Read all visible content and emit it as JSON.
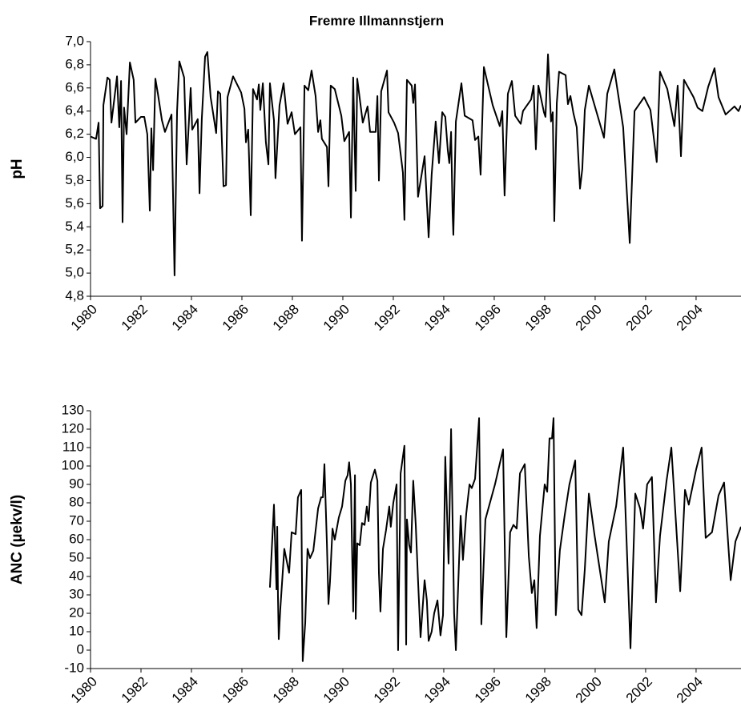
{
  "chart_data": [
    {
      "type": "line",
      "title": "Fremre Illmannstjern",
      "ylabel": "pH",
      "color": "#000000",
      "xlim": [
        1980,
        2005.78
      ],
      "xticks": [
        1980,
        1982,
        1984,
        1986,
        1988,
        1990,
        1992,
        1994,
        1996,
        1998,
        2000,
        2002,
        2004
      ],
      "ylim": [
        4.8,
        7.0
      ],
      "yticks": [
        {
          "value": 4.8,
          "label": "4,8"
        },
        {
          "value": 5.0,
          "label": "5,0"
        },
        {
          "value": 5.2,
          "label": "5,2"
        },
        {
          "value": 5.4,
          "label": "5,4"
        },
        {
          "value": 5.6,
          "label": "5,6"
        },
        {
          "value": 5.8,
          "label": "5,8"
        },
        {
          "value": 6.0,
          "label": "6,0"
        },
        {
          "value": 6.2,
          "label": "6,2"
        },
        {
          "value": 6.4,
          "label": "6,4"
        },
        {
          "value": 6.6,
          "label": "6,6"
        },
        {
          "value": 6.8,
          "label": "6,8"
        },
        {
          "value": 7.0,
          "label": "7,0"
        }
      ],
      "x": [
        1980.0,
        1980.22,
        1980.32,
        1980.38,
        1980.48,
        1980.51,
        1980.67,
        1980.76,
        1980.83,
        1981.05,
        1981.14,
        1981.21,
        1981.27,
        1981.33,
        1981.43,
        1981.56,
        1981.71,
        1981.78,
        1982.0,
        1982.13,
        1982.25,
        1982.35,
        1982.41,
        1982.48,
        1982.57,
        1982.67,
        1982.83,
        1982.95,
        1983.21,
        1983.33,
        1983.43,
        1983.52,
        1983.71,
        1983.81,
        1983.97,
        1984.03,
        1984.25,
        1984.32,
        1984.41,
        1984.54,
        1984.63,
        1984.76,
        1984.98,
        1985.05,
        1985.14,
        1985.27,
        1985.37,
        1985.43,
        1985.65,
        1985.97,
        1986.1,
        1986.16,
        1986.25,
        1986.35,
        1986.44,
        1986.6,
        1986.67,
        1986.73,
        1986.83,
        1986.95,
        1987.05,
        1987.11,
        1987.27,
        1987.33,
        1987.49,
        1987.65,
        1987.81,
        1987.97,
        1988.1,
        1988.32,
        1988.38,
        1988.48,
        1988.63,
        1988.76,
        1988.92,
        1989.02,
        1989.11,
        1989.17,
        1989.37,
        1989.43,
        1989.52,
        1989.68,
        1989.94,
        1990.06,
        1990.25,
        1990.32,
        1990.41,
        1990.51,
        1990.57,
        1990.79,
        1990.98,
        1991.08,
        1991.3,
        1991.37,
        1991.43,
        1991.52,
        1991.75,
        1991.81,
        1992.03,
        1992.19,
        1992.38,
        1992.44,
        1992.54,
        1992.73,
        1992.79,
        1992.86,
        1992.98,
        1993.24,
        1993.4,
        1993.52,
        1993.68,
        1993.81,
        1993.94,
        1994.06,
        1994.16,
        1994.22,
        1994.29,
        1994.35,
        1994.38,
        1994.48,
        1994.7,
        1994.83,
        1995.14,
        1995.24,
        1995.37,
        1995.46,
        1995.59,
        1995.94,
        1996.22,
        1996.32,
        1996.41,
        1996.54,
        1996.7,
        1996.83,
        1997.05,
        1997.14,
        1997.46,
        1997.56,
        1997.65,
        1997.75,
        1997.97,
        1998.03,
        1998.13,
        1998.25,
        1998.32,
        1998.38,
        1998.48,
        1998.57,
        1998.83,
        1998.92,
        1999.02,
        1999.14,
        1999.27,
        1999.4,
        1999.49,
        1999.59,
        1999.75,
        2000.35,
        2000.48,
        2000.76,
        2001.11,
        2001.37,
        2001.56,
        2001.94,
        2002.19,
        2002.44,
        2002.57,
        2002.86,
        2003.14,
        2003.27,
        2003.4,
        2003.52,
        2003.9,
        2004.06,
        2004.25,
        2004.48,
        2004.73,
        2004.89,
        2005.17,
        2005.52,
        2005.68,
        2005.78
      ],
      "values": [
        6.18,
        6.16,
        6.3,
        5.56,
        5.58,
        6.45,
        6.69,
        6.67,
        6.3,
        6.7,
        6.26,
        6.66,
        5.44,
        6.43,
        6.2,
        6.82,
        6.67,
        6.3,
        6.35,
        6.35,
        6.2,
        5.54,
        6.25,
        5.89,
        6.68,
        6.55,
        6.32,
        6.22,
        6.37,
        4.98,
        6.4,
        6.83,
        6.69,
        5.94,
        6.6,
        6.24,
        6.33,
        5.69,
        6.33,
        6.87,
        6.91,
        6.52,
        6.21,
        6.57,
        6.55,
        5.75,
        5.76,
        6.52,
        6.7,
        6.56,
        6.42,
        6.13,
        6.24,
        5.5,
        6.59,
        6.5,
        6.63,
        6.41,
        6.64,
        6.13,
        5.94,
        6.64,
        6.32,
        5.82,
        6.45,
        6.64,
        6.29,
        6.39,
        6.2,
        6.26,
        5.28,
        6.62,
        6.58,
        6.75,
        6.53,
        6.22,
        6.32,
        6.16,
        6.09,
        5.75,
        6.62,
        6.59,
        6.36,
        6.14,
        6.22,
        5.48,
        6.69,
        5.71,
        6.68,
        6.3,
        6.44,
        6.22,
        6.22,
        6.53,
        5.8,
        6.57,
        6.75,
        6.39,
        6.3,
        6.21,
        5.87,
        5.46,
        6.67,
        6.62,
        6.47,
        6.63,
        5.66,
        6.01,
        5.31,
        5.85,
        6.31,
        5.95,
        6.39,
        6.35,
        6.06,
        5.95,
        6.22,
        5.52,
        5.33,
        6.31,
        6.64,
        6.36,
        6.32,
        6.15,
        6.18,
        5.85,
        6.78,
        6.45,
        6.27,
        6.4,
        5.67,
        6.55,
        6.66,
        6.36,
        6.29,
        6.4,
        6.5,
        6.62,
        6.07,
        6.62,
        6.39,
        6.35,
        6.89,
        6.31,
        6.39,
        5.45,
        6.47,
        6.74,
        6.71,
        6.46,
        6.53,
        6.38,
        6.26,
        5.73,
        5.9,
        6.41,
        6.62,
        6.17,
        6.55,
        6.76,
        6.26,
        5.26,
        6.4,
        6.52,
        6.41,
        5.96,
        6.74,
        6.59,
        6.27,
        6.62,
        6.01,
        6.67,
        6.52,
        6.43,
        6.4,
        6.61,
        6.77,
        6.52,
        6.37,
        6.44,
        6.4,
        6.45
      ]
    },
    {
      "type": "line",
      "ylabel": "ANC (µekv/l)",
      "color": "#000000",
      "xlim": [
        1980,
        2005.78
      ],
      "xticks": [
        1980,
        1982,
        1984,
        1986,
        1988,
        1990,
        1992,
        1994,
        1996,
        1998,
        2000,
        2002,
        2004
      ],
      "ylim": [
        -10,
        130
      ],
      "yticks": [
        -10,
        0,
        10,
        20,
        30,
        40,
        50,
        60,
        70,
        80,
        90,
        100,
        110,
        120,
        130
      ],
      "x": [
        1987.11,
        1987.27,
        1987.37,
        1987.4,
        1987.43,
        1987.46,
        1987.52,
        1987.68,
        1987.87,
        1987.97,
        1988.13,
        1988.22,
        1988.35,
        1988.41,
        1988.51,
        1988.6,
        1988.7,
        1988.83,
        1989.02,
        1989.14,
        1989.21,
        1989.27,
        1989.37,
        1989.43,
        1989.49,
        1989.59,
        1989.68,
        1989.84,
        1989.97,
        1990.1,
        1990.19,
        1990.25,
        1990.32,
        1990.41,
        1990.48,
        1990.51,
        1990.57,
        1990.67,
        1990.76,
        1990.86,
        1990.95,
        1991.02,
        1991.11,
        1991.27,
        1991.37,
        1991.43,
        1991.49,
        1991.59,
        1991.71,
        1991.84,
        1991.9,
        1992.0,
        1992.13,
        1992.19,
        1992.29,
        1992.44,
        1992.51,
        1992.54,
        1992.63,
        1992.7,
        1992.79,
        1992.89,
        1992.98,
        1993.08,
        1993.24,
        1993.33,
        1993.4,
        1993.52,
        1993.62,
        1993.75,
        1993.87,
        1993.97,
        1994.06,
        1994.19,
        1994.29,
        1994.41,
        1994.48,
        1994.67,
        1994.76,
        1994.89,
        1995.02,
        1995.11,
        1995.24,
        1995.4,
        1995.49,
        1995.65,
        1996.03,
        1996.35,
        1996.48,
        1996.63,
        1996.76,
        1996.89,
        1997.02,
        1997.21,
        1997.37,
        1997.49,
        1997.59,
        1997.68,
        1997.81,
        1998.0,
        1998.1,
        1998.19,
        1998.29,
        1998.35,
        1998.44,
        1998.6,
        1998.79,
        1998.98,
        1999.21,
        1999.33,
        1999.46,
        1999.59,
        1999.75,
        1999.97,
        2000.38,
        2000.54,
        2000.83,
        2001.11,
        2001.4,
        2001.59,
        2001.78,
        2001.9,
        2002.06,
        2002.25,
        2002.41,
        2002.57,
        2002.83,
        2003.02,
        2003.37,
        2003.56,
        2003.71,
        2004.0,
        2004.22,
        2004.38,
        2004.63,
        2004.89,
        2005.11,
        2005.37,
        2005.56,
        2005.78
      ],
      "values": [
        34,
        79,
        33,
        67,
        28,
        6,
        22,
        55,
        42,
        64,
        63,
        83,
        87,
        -6,
        15,
        55,
        50,
        54,
        77,
        83,
        83,
        101,
        57,
        25,
        37,
        66,
        60,
        72,
        78,
        92,
        95,
        102,
        90,
        21,
        95,
        17,
        58,
        57,
        69,
        68,
        78,
        70,
        91,
        98,
        92,
        42,
        21,
        55,
        65,
        78,
        67,
        80,
        90,
        0,
        96,
        111,
        3,
        71,
        57,
        53,
        92,
        68,
        38,
        7,
        38,
        27,
        5,
        10,
        20,
        27,
        8,
        19,
        105,
        47,
        120,
        20,
        0,
        73,
        49,
        74,
        90,
        88,
        93,
        126,
        14,
        71,
        90,
        109,
        7,
        64,
        68,
        66,
        96,
        101,
        51,
        31,
        38,
        12,
        62,
        90,
        86,
        115,
        115,
        126,
        19,
        54,
        73,
        90,
        103,
        22,
        19,
        44,
        85,
        63,
        26,
        59,
        78,
        110,
        1,
        85,
        77,
        66,
        90,
        94,
        26,
        62,
        92,
        110,
        32,
        87,
        79,
        98,
        110,
        61,
        64,
        84,
        91,
        38,
        59,
        67
      ]
    }
  ]
}
